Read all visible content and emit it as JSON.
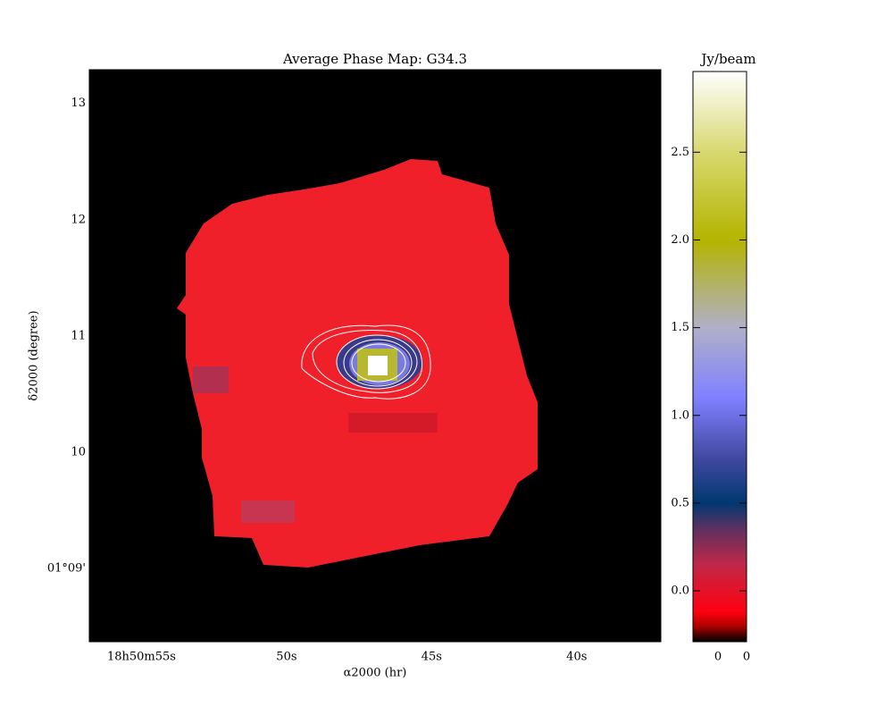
{
  "chart_data": {
    "type": "image",
    "title": "Average  Phase Map: G34.3",
    "xlabel": "α2000 (hr)",
    "ylabel": "δ2000 (degree)",
    "xlim": [
      56.8,
      37.1
    ],
    "xticks": [
      {
        "value": 55,
        "label": "18h50m55s"
      },
      {
        "value": 50,
        "label": "50s"
      },
      {
        "value": 45,
        "label": "45s"
      },
      {
        "value": 40,
        "label": "40s"
      }
    ],
    "ylim": [
      8.37,
      13.29
    ],
    "yticks": [
      13,
      12,
      11,
      10,
      {
        "value": 9,
        "label": "01°09'"
      }
    ],
    "colorbar": {
      "title": "Jy/beam",
      "lim": [
        -0.29,
        2.96
      ],
      "ticks": [
        {
          "value": 0,
          "label": "0.0"
        },
        0.5,
        {
          "value": 1,
          "label": "1.0"
        },
        1.5,
        {
          "value": 2,
          "label": "2.0"
        },
        2.5
      ],
      "footer": [
        "0",
        "0"
      ],
      "colormap": [
        [
          -0.29,
          "#000000"
        ],
        [
          -0.2,
          "#b00000"
        ],
        [
          -0.12,
          "#ff0010"
        ],
        [
          0.15,
          "#c02848"
        ],
        [
          0.35,
          "#603060"
        ],
        [
          0.5,
          "#003870"
        ],
        [
          0.75,
          "#4048a0"
        ],
        [
          1.1,
          "#8080ff"
        ],
        [
          1.5,
          "#b0b0c8"
        ],
        [
          2.0,
          "#b4b400"
        ],
        [
          2.5,
          "#d8d870"
        ],
        [
          2.96,
          "#ffffff"
        ]
      ]
    }
  }
}
